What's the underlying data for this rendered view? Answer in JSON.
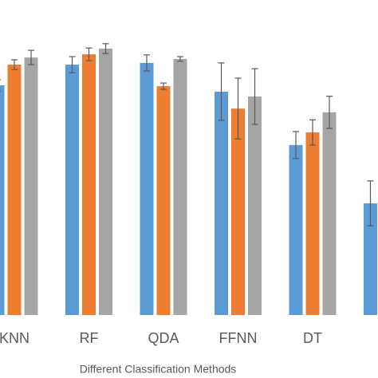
{
  "chart_data": {
    "type": "bar",
    "x_label": "Different Classification Methods",
    "categories": [
      "KNN",
      "RF",
      "QDA",
      "FFNN",
      "DT",
      null
    ],
    "series": [
      {
        "color": "#5b9bd5",
        "values": [
          80.0,
          87.2,
          87.8,
          77.8,
          59.2,
          38.9
        ],
        "errors": [
          2.0,
          2.8,
          2.8,
          10.0,
          4.7,
          7.8
        ]
      },
      {
        "color": "#ed7d31",
        "values": [
          87.2,
          90.8,
          79.7,
          71.9,
          63.6,
          null
        ],
        "errors": [
          1.7,
          2.2,
          1.1,
          10.6,
          4.4,
          null
        ]
      },
      {
        "color": "#a5a5a5",
        "values": [
          89.7,
          92.8,
          89.2,
          76.1,
          70.6,
          null
        ],
        "errors": [
          2.5,
          1.7,
          0.8,
          9.7,
          5.6,
          null
        ]
      }
    ],
    "ylim": [
      0,
      100
    ]
  }
}
